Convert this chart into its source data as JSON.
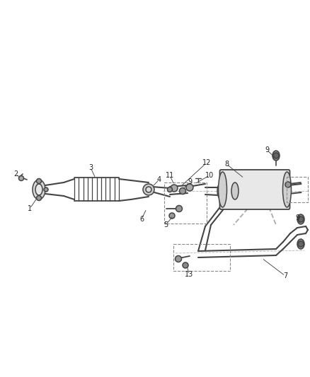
{
  "bg_color": "#ffffff",
  "line_color": "#444444",
  "label_color": "#222222",
  "fig_width": 4.38,
  "fig_height": 5.33,
  "dpi": 100
}
